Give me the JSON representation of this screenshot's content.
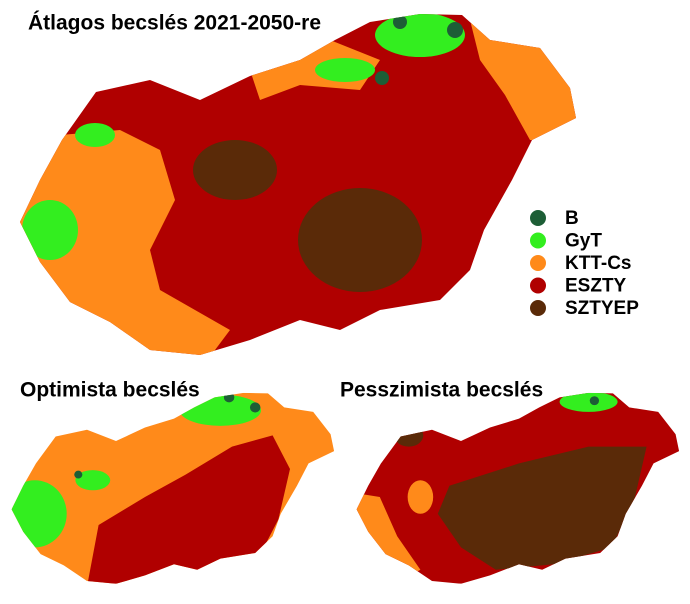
{
  "maps": [
    {
      "title": "Átlagos becslés 2021-2050-re"
    },
    {
      "title": "Optimista becslés"
    },
    {
      "title": "Pesszimista becslés"
    }
  ],
  "legend": [
    {
      "label": "B",
      "color": "#1d5e36"
    },
    {
      "label": "GyT",
      "color": "#33ee1f"
    },
    {
      "label": "KTT-Cs",
      "color": "#ff8a1a"
    },
    {
      "label": "ESZTY",
      "color": "#b00000"
    },
    {
      "label": "SZTYEP",
      "color": "#5a2a08"
    }
  ]
}
